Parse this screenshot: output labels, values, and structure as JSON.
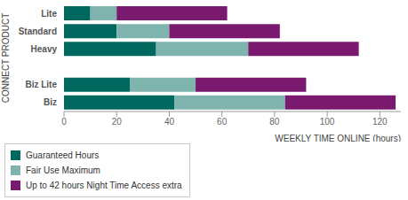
{
  "chart_data": {
    "type": "bar",
    "orientation": "horizontal",
    "stacked": true,
    "categories": [
      "Lite",
      "Standard",
      "Heavy",
      null,
      "Biz Lite",
      "Biz"
    ],
    "series": [
      {
        "name": "Guaranteed Hours",
        "color": "#00695f",
        "values": [
          10,
          20,
          35,
          null,
          25,
          42
        ]
      },
      {
        "name": "Fair Use Maximum",
        "color": "#7fb3ae",
        "values": [
          10,
          20,
          35,
          null,
          25,
          42
        ]
      },
      {
        "name": "Up to 42 hours Night Time Access extra",
        "color": "#7a1a6e",
        "values": [
          42,
          42,
          42,
          null,
          42,
          42
        ]
      }
    ],
    "xlim": [
      0,
      128
    ],
    "xticks": [
      0,
      20,
      40,
      60,
      80,
      100,
      120
    ],
    "xlabel": "WEEKLY TIME ONLINE (hours)",
    "ylabel": "CONNECT PRODUCT",
    "legend": "lower left",
    "grid": false
  }
}
